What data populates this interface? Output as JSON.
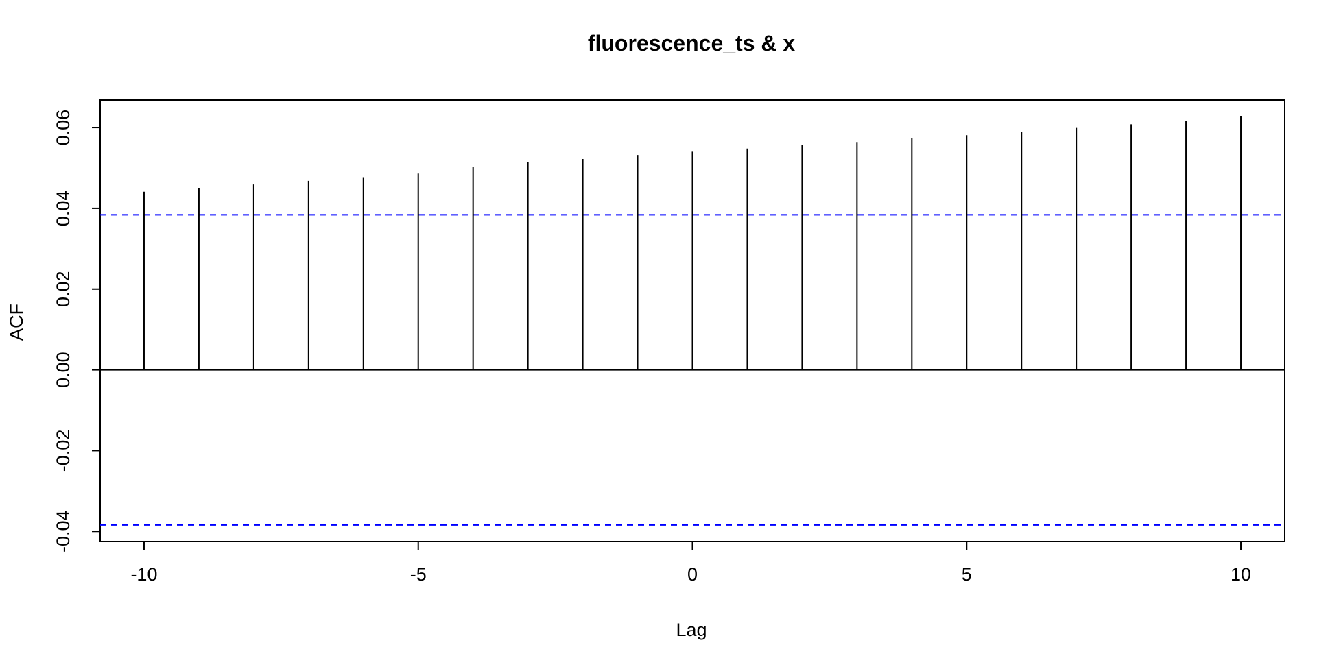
{
  "chart_data": {
    "type": "bar",
    "title": "fluorescence_ts & x",
    "xlabel": "Lag",
    "ylabel": "ACF",
    "x": [
      -10,
      -9,
      -8,
      -7,
      -6,
      -5,
      -4,
      -3,
      -2,
      -1,
      0,
      1,
      2,
      3,
      4,
      5,
      6,
      7,
      8,
      9,
      10
    ],
    "values": [
      0.0441,
      0.045,
      0.0459,
      0.0468,
      0.0477,
      0.0486,
      0.0502,
      0.0514,
      0.0522,
      0.0532,
      0.054,
      0.0548,
      0.0556,
      0.0564,
      0.0573,
      0.0581,
      0.059,
      0.0599,
      0.0608,
      0.0617,
      0.0629
    ],
    "xlim": [
      -10.8,
      10.8
    ],
    "ylim": [
      -0.0425,
      0.0668
    ],
    "x_ticks": [
      -10,
      -5,
      0,
      5,
      10
    ],
    "x_tick_labels": [
      "-10",
      "-5",
      "0",
      "5",
      "10"
    ],
    "y_ticks": [
      -0.04,
      -0.02,
      0.0,
      0.02,
      0.04,
      0.06
    ],
    "y_tick_labels": [
      "-0.04",
      "-0.02",
      "0.00",
      "0.02",
      "0.04",
      "0.06"
    ],
    "confidence_bounds": [
      0.0384,
      -0.0384
    ],
    "zero_line": true,
    "grid": false,
    "colors": {
      "bars": "#000000",
      "confidence": "#0000ff",
      "frame": "#000000"
    }
  }
}
